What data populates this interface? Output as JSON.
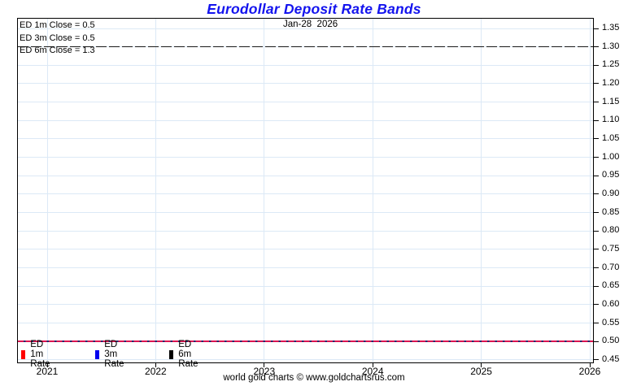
{
  "title": "Eurodollar Deposit Rate Bands",
  "annotations": {
    "close_labels": [
      "ED 1m Close = 0.5",
      "ED 3m Close = 0.5",
      "ED 6m Close = 1.3"
    ],
    "date_label": "Jan-28  2026"
  },
  "legend": [
    {
      "label": "ED 1m Rate",
      "color": "#ff0000"
    },
    {
      "label": "ED 3m Rate",
      "color": "#0000ee"
    },
    {
      "label": "ED 6m Rate",
      "color": "#000000"
    }
  ],
  "footer": "world gold charts © www.goldchartsrus.com",
  "chart_data": {
    "type": "line",
    "title": "Eurodollar Deposit Rate Bands",
    "xlabel": "",
    "ylabel": "",
    "x_ticks": [
      2021,
      2022,
      2023,
      2024,
      2025,
      2026
    ],
    "y_ticks": [
      1.35,
      1.3,
      1.25,
      1.2,
      1.15,
      1.1,
      1.05,
      1.0,
      0.95,
      0.9,
      0.85,
      0.8,
      0.75,
      0.7,
      0.65,
      0.6,
      0.55,
      0.5,
      0.45
    ],
    "xlim": [
      2020.72,
      2026.04
    ],
    "ylim": [
      0.44,
      1.38
    ],
    "grid": true,
    "legend_position": "bottom-left-inside",
    "series": [
      {
        "name": "ED 1m Rate",
        "value": 0.5,
        "color": "#dc1450",
        "line_style": "solid",
        "x_range": [
          2020.72,
          2026.04
        ]
      },
      {
        "name": "ED 3m Rate",
        "value": 0.5,
        "color": "#232a6e",
        "line_style": "dashed",
        "x_range": [
          2020.72,
          2026.04
        ],
        "note": "overlaps ED 1m line at same value"
      },
      {
        "name": "ED 6m Rate",
        "value": 1.3,
        "color": "#1a1a1a",
        "line_style": "long-dash",
        "x_range": [
          2020.72,
          2026.04
        ]
      }
    ],
    "colors": {
      "grid": "#dce9f6",
      "title": "#1414ee",
      "axis": "#000000"
    }
  }
}
